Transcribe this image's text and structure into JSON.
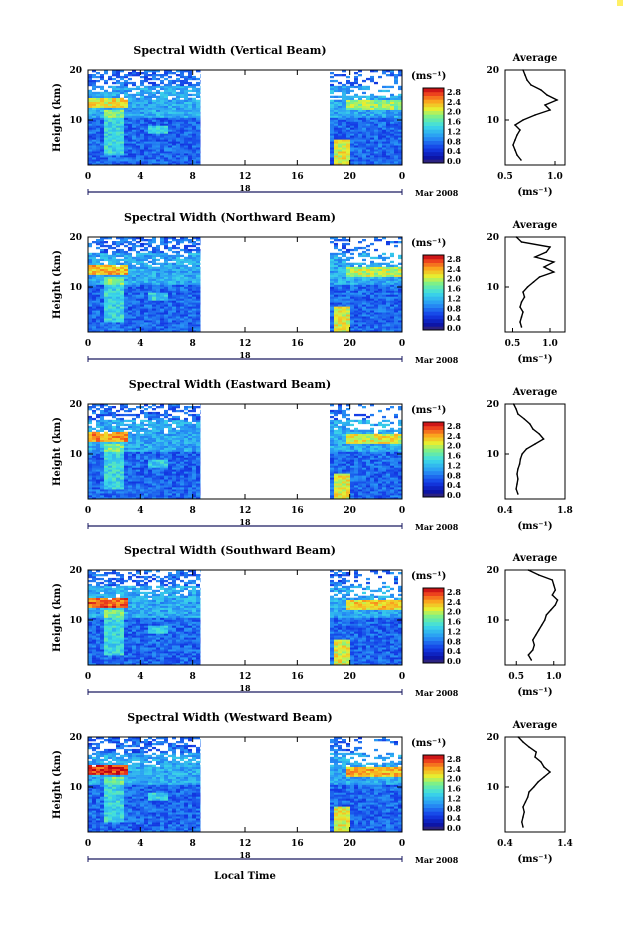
{
  "figure": {
    "xlabel": "Local Time",
    "date_label": "Mar 2008",
    "day_label": "18",
    "colorbar_unit": "(ms⁻¹)",
    "profile_title": "Average",
    "profile_unit": "(ms⁻¹)",
    "y_label": "Height (km)"
  },
  "chart_data": [
    {
      "type": "heatmap",
      "title": "Spectral Width (Vertical Beam)",
      "ylabel": "Height (km)",
      "x_ticks": [
        "0",
        "4",
        "8",
        "12",
        "16",
        "20",
        "0"
      ],
      "xlim": [
        0,
        24
      ],
      "y_ticks": [
        "20",
        "10"
      ],
      "ylim": [
        1,
        20
      ],
      "data_segments_hours": [
        [
          0,
          8.6
        ],
        [
          18.5,
          24
        ]
      ],
      "colorbar_ticks": [
        "2.8",
        "2.4",
        "2.0",
        "1.6",
        "1.2",
        "0.8",
        "0.4",
        "0.0"
      ],
      "colorbar_range": [
        0,
        2.8
      ],
      "profile": {
        "title": "Average",
        "x_ticks": [
          "0.5",
          "1.0"
        ],
        "xlim": [
          0.5,
          1.1
        ],
        "heights": [
          2,
          3,
          4,
          5,
          6,
          7,
          8,
          9,
          10,
          11,
          12,
          13,
          14,
          15,
          16,
          17,
          18,
          19,
          20
        ],
        "values": [
          0.66,
          0.62,
          0.6,
          0.58,
          0.6,
          0.62,
          0.65,
          0.6,
          0.68,
          0.8,
          0.95,
          0.9,
          1.02,
          0.92,
          0.86,
          0.76,
          0.72,
          0.7,
          0.68
        ]
      }
    },
    {
      "type": "heatmap",
      "title": "Spectral Width (Northward Beam)",
      "ylabel": "Height (km)",
      "x_ticks": [
        "0",
        "4",
        "8",
        "12",
        "16",
        "20",
        "0"
      ],
      "xlim": [
        0,
        24
      ],
      "y_ticks": [
        "20",
        "10"
      ],
      "ylim": [
        1,
        20
      ],
      "data_segments_hours": [
        [
          0,
          8.6
        ],
        [
          18.5,
          24
        ]
      ],
      "colorbar_ticks": [
        "2.8",
        "2.4",
        "2.0",
        "1.6",
        "1.2",
        "0.8",
        "0.4",
        "0.0"
      ],
      "colorbar_range": [
        0,
        2.8
      ],
      "profile": {
        "title": "Average",
        "x_ticks": [
          "0.5",
          "1.0"
        ],
        "xlim": [
          0.4,
          1.2
        ],
        "heights": [
          2,
          3,
          4,
          5,
          6,
          7,
          8,
          9,
          10,
          11,
          12,
          13,
          14,
          15,
          16,
          17,
          18,
          19,
          20
        ],
        "values": [
          0.62,
          0.6,
          0.62,
          0.64,
          0.6,
          0.62,
          0.66,
          0.64,
          0.7,
          0.78,
          0.86,
          1.05,
          0.92,
          1.05,
          0.8,
          0.95,
          1.0,
          0.62,
          0.55
        ]
      }
    },
    {
      "type": "heatmap",
      "title": "Spectral Width (Eastward Beam)",
      "ylabel": "Height (km)",
      "x_ticks": [
        "0",
        "4",
        "8",
        "12",
        "16",
        "20",
        "0"
      ],
      "xlim": [
        0,
        24
      ],
      "y_ticks": [
        "20",
        "10"
      ],
      "ylim": [
        1,
        20
      ],
      "data_segments_hours": [
        [
          0,
          8.6
        ],
        [
          18.5,
          24
        ]
      ],
      "colorbar_ticks": [
        "2.8",
        "2.4",
        "2.0",
        "1.6",
        "1.2",
        "0.8",
        "0.4",
        "0.0"
      ],
      "colorbar_range": [
        0,
        2.8
      ],
      "profile": {
        "title": "Average",
        "x_ticks": [
          "0.4",
          "1.8"
        ],
        "xlim": [
          0.4,
          1.8
        ],
        "heights": [
          2,
          3,
          4,
          5,
          6,
          7,
          8,
          9,
          10,
          11,
          12,
          13,
          14,
          15,
          16,
          17,
          18,
          19,
          20
        ],
        "values": [
          0.7,
          0.66,
          0.68,
          0.7,
          0.68,
          0.7,
          0.74,
          0.76,
          0.8,
          0.9,
          1.1,
          1.3,
          1.2,
          1.05,
          0.98,
          0.85,
          0.7,
          0.66,
          0.6
        ]
      }
    },
    {
      "type": "heatmap",
      "title": "Spectral Width (Southward Beam)",
      "ylabel": "Height (km)",
      "x_ticks": [
        "0",
        "4",
        "8",
        "12",
        "16",
        "20",
        "0"
      ],
      "xlim": [
        0,
        24
      ],
      "y_ticks": [
        "20",
        "10"
      ],
      "ylim": [
        1,
        20
      ],
      "data_segments_hours": [
        [
          0,
          8.6
        ],
        [
          18.5,
          24
        ]
      ],
      "colorbar_ticks": [
        "2.8",
        "2.4",
        "2.0",
        "1.6",
        "1.2",
        "0.8",
        "0.4",
        "0.0"
      ],
      "colorbar_range": [
        0,
        2.8
      ],
      "profile": {
        "title": "Average",
        "x_ticks": [
          "0.5",
          "1.0"
        ],
        "xlim": [
          0.35,
          1.15
        ],
        "heights": [
          2,
          3,
          4,
          5,
          6,
          7,
          8,
          9,
          10,
          11,
          12,
          13,
          14,
          15,
          16,
          17,
          18,
          19,
          20
        ],
        "values": [
          0.7,
          0.66,
          0.72,
          0.74,
          0.72,
          0.76,
          0.8,
          0.84,
          0.88,
          0.9,
          0.96,
          1.02,
          1.05,
          0.98,
          1.02,
          1.0,
          0.98,
          0.8,
          0.66
        ]
      }
    },
    {
      "type": "heatmap",
      "title": "Spectral Width (Westward Beam)",
      "ylabel": "Height (km)",
      "x_ticks": [
        "0",
        "4",
        "8",
        "12",
        "16",
        "20",
        "0"
      ],
      "xlim": [
        0,
        24
      ],
      "y_ticks": [
        "20",
        "10"
      ],
      "ylim": [
        1,
        20
      ],
      "data_segments_hours": [
        [
          0,
          8.6
        ],
        [
          18.5,
          24
        ]
      ],
      "colorbar_ticks": [
        "2.8",
        "2.4",
        "2.0",
        "1.6",
        "1.2",
        "0.8",
        "0.4",
        "0.0"
      ],
      "colorbar_range": [
        0,
        2.8
      ],
      "profile": {
        "title": "Average",
        "x_ticks": [
          "0.4",
          "1.4"
        ],
        "xlim": [
          0.4,
          1.4
        ],
        "heights": [
          2,
          3,
          4,
          5,
          6,
          7,
          8,
          9,
          10,
          11,
          12,
          13,
          14,
          15,
          16,
          17,
          18,
          19,
          20
        ],
        "values": [
          0.7,
          0.68,
          0.7,
          0.72,
          0.7,
          0.74,
          0.78,
          0.8,
          0.88,
          0.95,
          1.05,
          1.15,
          1.05,
          1.0,
          0.9,
          0.92,
          0.8,
          0.7,
          0.62
        ]
      }
    }
  ]
}
